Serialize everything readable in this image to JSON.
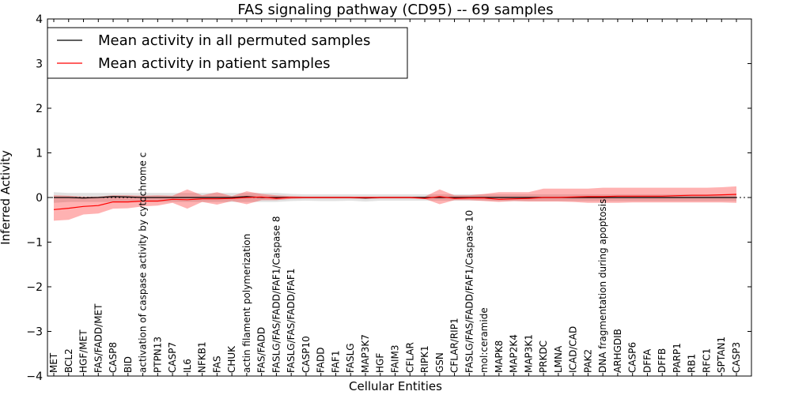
{
  "chart_data": {
    "type": "line",
    "title": "FAS signaling pathway (CD95) -- 69 samples",
    "xlabel": "Cellular Entities",
    "ylabel": "Inferred Activity",
    "ylim": [
      -4,
      4
    ],
    "yticks": [
      "−4",
      "−3",
      "−2",
      "−1",
      "0",
      "1",
      "2",
      "3",
      "4"
    ],
    "grid": false,
    "legend_position": "top-left",
    "categories": [
      "MET",
      "BCL2",
      "HGF/MET",
      "FAS/FADD/MET",
      "CASP8",
      "BID",
      "activation of caspase activity by cytochrome c",
      "PTPN13",
      "CASP7",
      "IL6",
      "NFKB1",
      "FAS",
      "CHUK",
      "actin filament polymerization",
      "FAS/FADD",
      "FASLG/FAS/FADD/FAF1/Caspase 8",
      "FASLG/FAS/FADD/FAF1",
      "CASP10",
      "FADD",
      "FAF1",
      "FASLG",
      "MAP3K7",
      "HGF",
      "FAIM3",
      "CFLAR",
      "RIPK1",
      "GSN",
      "CFLAR/RIP1",
      "FASLG/FAS/FADD/FAF1/Caspase 10",
      "mol:ceramide",
      "MAPK8",
      "MAP2K4",
      "MAP3K1",
      "PRKDC",
      "LMNA",
      "ICAD/CAD",
      "PAK2",
      "DNA fragmentation during apoptosis",
      "ARHGDIB",
      "CASP6",
      "DFFA",
      "DFFB",
      "PARP1",
      "RB1",
      "RFC1",
      "SPTAN1",
      "CASP3"
    ],
    "series": [
      {
        "name": "Mean activity in all permuted samples",
        "color": "#000000",
        "values": [
          0.0,
          0.0,
          -0.01,
          0.0,
          0.02,
          0.01,
          0.0,
          0.0,
          0.0,
          0.0,
          0.0,
          0.0,
          0.0,
          0.02,
          0.0,
          0.0,
          0.0,
          0.0,
          0.0,
          0.0,
          0.0,
          -0.01,
          0.0,
          0.0,
          0.0,
          0.0,
          0.0,
          0.0,
          0.0,
          0.0,
          0.0,
          0.0,
          0.0,
          0.0,
          0.0,
          0.0,
          0.0,
          0.0,
          0.0,
          0.0,
          0.0,
          0.0,
          0.0,
          0.0,
          0.0,
          0.0,
          0.0
        ],
        "band_low": [
          -0.12,
          -0.1,
          -0.1,
          -0.1,
          -0.1,
          -0.1,
          -0.1,
          -0.1,
          -0.1,
          -0.1,
          -0.1,
          -0.1,
          -0.1,
          -0.1,
          -0.1,
          -0.1,
          -0.08,
          -0.07,
          -0.08,
          -0.08,
          -0.07,
          -0.09,
          -0.07,
          -0.07,
          -0.07,
          -0.07,
          -0.07,
          -0.07,
          -0.07,
          -0.07,
          -0.08,
          -0.08,
          -0.08,
          -0.08,
          -0.08,
          -0.08,
          -0.08,
          -0.08,
          -0.08,
          -0.08,
          -0.08,
          -0.08,
          -0.08,
          -0.08,
          -0.08,
          -0.08,
          -0.08
        ],
        "band_high": [
          0.12,
          0.1,
          0.1,
          0.1,
          0.1,
          0.1,
          0.1,
          0.1,
          0.1,
          0.1,
          0.1,
          0.1,
          0.1,
          0.1,
          0.1,
          0.1,
          0.08,
          0.07,
          0.07,
          0.07,
          0.07,
          0.07,
          0.07,
          0.07,
          0.07,
          0.07,
          0.07,
          0.07,
          0.07,
          0.07,
          0.07,
          0.07,
          0.07,
          0.07,
          0.07,
          0.07,
          0.07,
          0.07,
          0.07,
          0.07,
          0.07,
          0.07,
          0.07,
          0.07,
          0.07,
          0.07,
          0.07
        ]
      },
      {
        "name": "Mean activity in patient samples",
        "color": "#ff0000",
        "values": [
          -0.27,
          -0.24,
          -0.2,
          -0.18,
          -0.1,
          -0.1,
          -0.08,
          -0.08,
          -0.04,
          -0.05,
          -0.03,
          -0.03,
          -0.02,
          0.0,
          0.01,
          -0.02,
          0.0,
          0.0,
          0.0,
          0.0,
          0.0,
          0.0,
          0.0,
          0.0,
          0.0,
          -0.02,
          0.02,
          -0.02,
          -0.01,
          -0.01,
          -0.04,
          -0.03,
          -0.02,
          0.0,
          0.0,
          0.01,
          0.02,
          0.02,
          0.03,
          0.03,
          0.03,
          0.03,
          0.04,
          0.05,
          0.05,
          0.06,
          0.07
        ],
        "band_low": [
          -0.52,
          -0.5,
          -0.38,
          -0.36,
          -0.25,
          -0.24,
          -0.2,
          -0.18,
          -0.12,
          -0.25,
          -0.1,
          -0.16,
          -0.08,
          -0.15,
          -0.06,
          -0.06,
          -0.03,
          -0.02,
          -0.02,
          -0.02,
          -0.02,
          -0.03,
          -0.02,
          -0.02,
          -0.02,
          -0.03,
          -0.15,
          -0.06,
          -0.06,
          -0.08,
          -0.1,
          -0.08,
          -0.09,
          -0.09,
          -0.09,
          -0.1,
          -0.12,
          -0.12,
          -0.12,
          -0.11,
          -0.11,
          -0.11,
          -0.11,
          -0.11,
          -0.11,
          -0.11,
          -0.12
        ],
        "band_high": [
          0.05,
          0.04,
          0.02,
          0.02,
          0.05,
          0.05,
          0.04,
          0.05,
          0.04,
          0.18,
          0.05,
          0.12,
          0.03,
          0.14,
          0.08,
          0.05,
          0.03,
          0.02,
          0.02,
          0.02,
          0.02,
          0.02,
          0.02,
          0.02,
          0.02,
          0.02,
          0.18,
          0.05,
          0.05,
          0.08,
          0.12,
          0.12,
          0.12,
          0.2,
          0.2,
          0.2,
          0.2,
          0.22,
          0.22,
          0.22,
          0.22,
          0.22,
          0.22,
          0.22,
          0.22,
          0.23,
          0.25
        ]
      }
    ]
  }
}
